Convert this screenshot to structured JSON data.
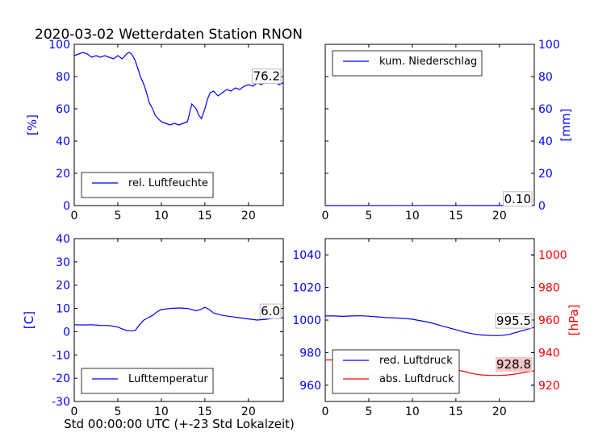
{
  "figure": {
    "title": "2020-03-02 Wetterdaten Station RNON",
    "xlabel": "Std 00:00:00 UTC (+-23 Std Lokalzeit)"
  },
  "colors": {
    "blue": "#0000ff",
    "red": "#ff0000",
    "label_box_red": "#f4c5c5"
  },
  "chart_data": [
    {
      "id": "humidity",
      "type": "line",
      "ylabel": "[%]",
      "xlim": [
        0,
        24
      ],
      "ylim": [
        0,
        100
      ],
      "xticks": [
        0,
        5,
        10,
        15,
        20
      ],
      "yticks": [
        0,
        20,
        40,
        60,
        80,
        100
      ],
      "legend": "lower-left",
      "series": [
        {
          "name": "rel. Luftfeuchte",
          "color": "#0000ff",
          "x": [
            0,
            0.5,
            1,
            1.5,
            2,
            2.5,
            3,
            3.5,
            4,
            4.5,
            5,
            5.5,
            6,
            6.3,
            6.6,
            7,
            7.3,
            7.6,
            8,
            8.3,
            8.6,
            9,
            9.3,
            9.6,
            10,
            10.5,
            11,
            11.5,
            12,
            12.5,
            13,
            13.5,
            14,
            14.3,
            14.6,
            15,
            15.3,
            15.6,
            16,
            16.5,
            17,
            17.5,
            18,
            18.5,
            19,
            19.5,
            20,
            20.5,
            21,
            21.5,
            22,
            22.5,
            23,
            23.5,
            24
          ],
          "y": [
            93,
            94,
            95,
            94,
            92,
            93,
            92,
            93,
            92,
            91,
            93,
            91,
            94,
            95,
            94,
            90,
            85,
            80,
            75,
            70,
            64,
            60,
            56,
            54,
            52,
            51,
            50,
            51,
            50,
            51,
            52,
            63,
            60,
            56,
            54,
            60,
            66,
            70,
            71,
            68,
            70,
            72,
            71,
            73,
            72,
            74,
            75,
            74,
            76,
            75,
            77,
            76,
            77,
            75,
            76.2
          ]
        }
      ],
      "last_label": "76.2"
    },
    {
      "id": "precipitation",
      "type": "line",
      "ylabel": "[mm]",
      "xlim": [
        0,
        24
      ],
      "ylim": [
        0,
        100
      ],
      "xticks": [
        0,
        5,
        10,
        15,
        20
      ],
      "yticks": [
        0,
        20,
        40,
        60,
        80,
        100
      ],
      "yaxis_side": "right",
      "legend": "upper-left",
      "series": [
        {
          "name": "kum. Niederschlag",
          "color": "#0000ff",
          "x": [
            0,
            24
          ],
          "y": [
            0,
            0.1
          ]
        }
      ],
      "last_label": "0.10"
    },
    {
      "id": "temperature",
      "type": "line",
      "ylabel": "[C]",
      "xlim": [
        0,
        24
      ],
      "ylim": [
        -30,
        40
      ],
      "xticks": [
        0,
        5,
        10,
        15,
        20
      ],
      "yticks": [
        -30,
        -20,
        -10,
        0,
        10,
        20,
        30,
        40
      ],
      "legend": "lower-left",
      "series": [
        {
          "name": "Lufttemperatur",
          "color": "#0000ff",
          "x": [
            0,
            1,
            2,
            3,
            4,
            5,
            5.5,
            6,
            6.5,
            7,
            7.5,
            8,
            8.5,
            9,
            9.5,
            10,
            11,
            12,
            13,
            14,
            14.5,
            15,
            15.5,
            16,
            17,
            18,
            19,
            20,
            21,
            22,
            23,
            24
          ],
          "y": [
            3,
            2.9,
            3,
            2.7,
            2.6,
            2,
            1.2,
            0.5,
            0.4,
            0.5,
            3,
            5,
            6,
            7,
            8.5,
            9.5,
            10,
            10.2,
            10,
            9,
            9.5,
            10.5,
            9.5,
            8,
            7,
            6.5,
            6,
            5.5,
            5,
            5.3,
            5.8,
            6
          ]
        }
      ],
      "last_label": "6.0"
    },
    {
      "id": "pressure",
      "type": "line",
      "xlim": [
        0,
        24
      ],
      "ylim": [
        950,
        1050
      ],
      "xticks": [
        0,
        5,
        10,
        15,
        20
      ],
      "yticks": [
        960,
        980,
        1000,
        1020,
        1040
      ],
      "y2label": "[hPa]",
      "y2lim": [
        910,
        1010
      ],
      "y2ticks": [
        920,
        940,
        960,
        980,
        1000
      ],
      "legend": "lower-left",
      "series": [
        {
          "name": "red. Luftdruck",
          "color": "#0000ff",
          "axis": "left",
          "x": [
            0,
            1,
            2,
            3,
            4,
            5,
            6,
            7,
            8,
            9,
            10,
            11,
            12,
            13,
            14,
            15,
            16,
            17,
            18,
            19,
            20,
            21,
            22,
            23,
            24
          ],
          "y": [
            1002.5,
            1002.5,
            1002.3,
            1002.5,
            1002.6,
            1002.4,
            1002,
            1001.5,
            1001.3,
            1001,
            1000.5,
            999.5,
            998.5,
            997,
            995.5,
            994,
            992.5,
            991.5,
            990.8,
            990.5,
            990.5,
            991,
            992.5,
            994,
            995.5
          ]
        },
        {
          "name": "abs. Luftdruck",
          "color": "#ff0000",
          "axis": "right",
          "x": [
            0,
            1,
            2,
            3,
            4,
            5,
            6,
            7,
            8,
            9,
            10,
            11,
            12,
            13,
            14,
            15,
            16,
            17,
            18,
            19,
            20,
            21,
            22,
            23,
            24
          ],
          "y": [
            935.5,
            935.5,
            935.3,
            935.5,
            935.6,
            935.4,
            935,
            934.5,
            934.3,
            934,
            933.5,
            932.8,
            932,
            931.2,
            930.5,
            929.5,
            928.3,
            927,
            926.3,
            926,
            926,
            926.3,
            927,
            928,
            928.8
          ]
        }
      ],
      "last_label": "995.5",
      "last_label2": "928.8"
    }
  ]
}
